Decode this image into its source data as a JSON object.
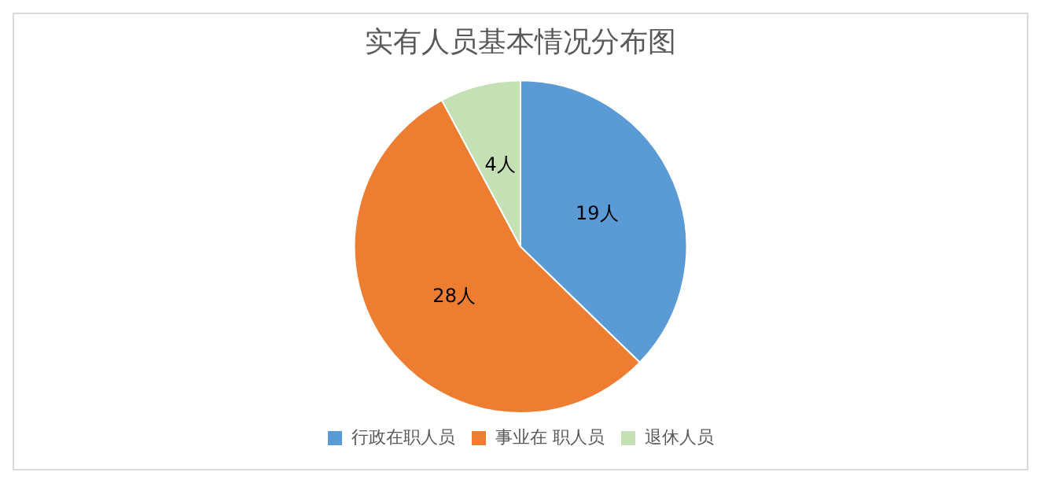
{
  "chart_data": {
    "type": "pie",
    "title": "实有人员基本情况分布图",
    "categories": [
      "行政在职人员",
      "事业在 职人员",
      "退休人员"
    ],
    "values": [
      19,
      28,
      4
    ],
    "colors": [
      "#5b9bd5",
      "#ed7d31",
      "#c5e0b4"
    ],
    "value_labels": [
      "19人",
      "28人",
      "4人"
    ],
    "legend": "bottom"
  }
}
